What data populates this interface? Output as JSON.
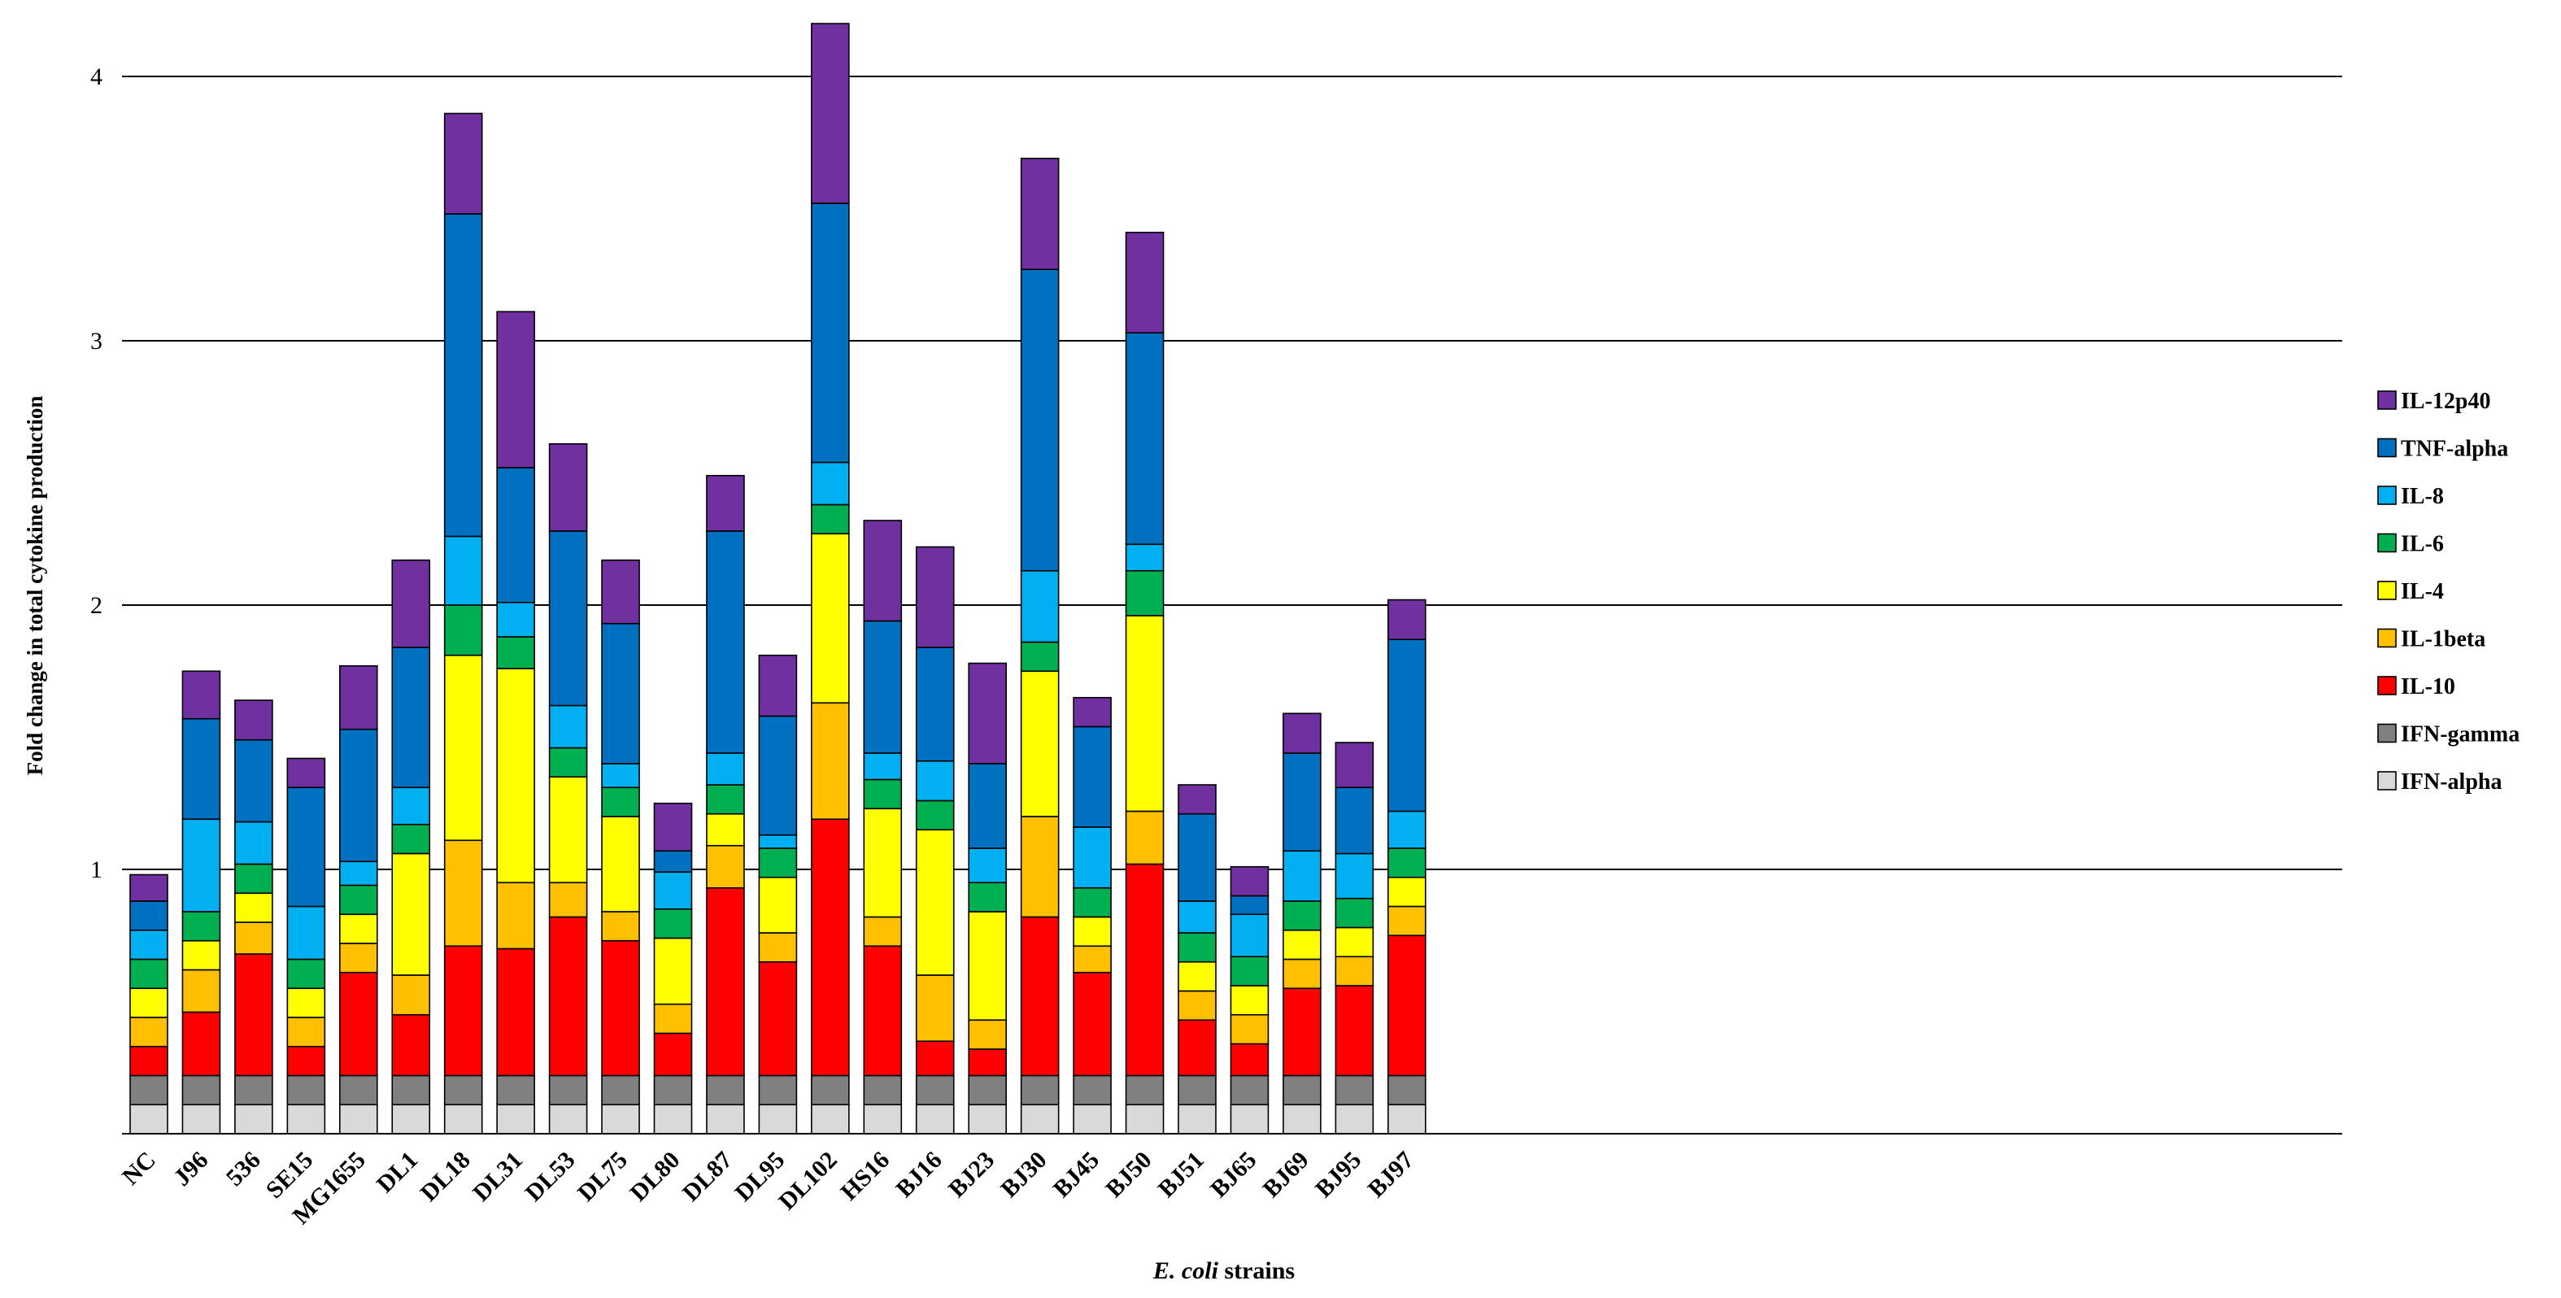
{
  "chart_data": {
    "type": "bar",
    "stacked": true,
    "title": "",
    "xlabel_italic": "E. coli",
    "xlabel_rest": " strains",
    "ylabel": "Fold change in total cytokine production",
    "ylim": [
      0,
      4.2
    ],
    "yticks": [
      "1",
      "2",
      "3",
      "4"
    ],
    "ytick_values": [
      1,
      2,
      3,
      4
    ],
    "grid": true,
    "legend_position": "right",
    "categories": [
      "NC",
      "J96",
      "536",
      "SE15",
      "MG1655",
      "DL1",
      "DL18",
      "DL31",
      "DL53",
      "DL75",
      "DL80",
      "DL87",
      "DL95",
      "DL102",
      "HS16",
      "BJ16",
      "BJ23",
      "BJ30",
      "BJ45",
      "BJ50",
      "BJ51",
      "BJ65",
      "BJ69",
      "BJ95",
      "BJ97"
    ],
    "series": [
      {
        "name": "IFN-alpha",
        "color": "#d9d9d9",
        "values": [
          0.11,
          0.11,
          0.11,
          0.11,
          0.11,
          0.11,
          0.11,
          0.11,
          0.11,
          0.11,
          0.11,
          0.11,
          0.11,
          0.11,
          0.11,
          0.11,
          0.11,
          0.11,
          0.11,
          0.11,
          0.11,
          0.11,
          0.11,
          0.11,
          0.11
        ]
      },
      {
        "name": "IFN-gamma",
        "color": "#808080",
        "values": [
          0.11,
          0.11,
          0.11,
          0.11,
          0.11,
          0.11,
          0.11,
          0.11,
          0.11,
          0.11,
          0.11,
          0.11,
          0.11,
          0.11,
          0.11,
          0.11,
          0.11,
          0.11,
          0.11,
          0.11,
          0.11,
          0.11,
          0.11,
          0.11,
          0.11
        ]
      },
      {
        "name": "IL-10",
        "color": "#ff0000",
        "values": [
          0.11,
          0.24,
          0.46,
          0.11,
          0.39,
          0.23,
          0.49,
          0.48,
          0.6,
          0.51,
          0.16,
          0.71,
          0.43,
          0.97,
          0.49,
          0.13,
          0.1,
          0.6,
          0.39,
          0.8,
          0.21,
          0.12,
          0.33,
          0.34,
          0.53
        ]
      },
      {
        "name": "IL-1beta",
        "color": "#ffc000",
        "values": [
          0.11,
          0.16,
          0.12,
          0.11,
          0.11,
          0.15,
          0.4,
          0.25,
          0.13,
          0.11,
          0.11,
          0.16,
          0.11,
          0.44,
          0.11,
          0.25,
          0.11,
          0.38,
          0.1,
          0.2,
          0.11,
          0.11,
          0.11,
          0.11,
          0.11
        ]
      },
      {
        "name": "IL-4",
        "color": "#ffff00",
        "values": [
          0.11,
          0.11,
          0.11,
          0.11,
          0.11,
          0.46,
          0.7,
          0.81,
          0.4,
          0.36,
          0.25,
          0.12,
          0.21,
          0.64,
          0.41,
          0.55,
          0.41,
          0.55,
          0.11,
          0.74,
          0.11,
          0.11,
          0.11,
          0.11,
          0.11
        ]
      },
      {
        "name": "IL-6",
        "color": "#00b050",
        "values": [
          0.11,
          0.11,
          0.11,
          0.11,
          0.11,
          0.11,
          0.19,
          0.12,
          0.11,
          0.11,
          0.11,
          0.11,
          0.11,
          0.11,
          0.11,
          0.11,
          0.11,
          0.11,
          0.11,
          0.17,
          0.11,
          0.11,
          0.11,
          0.11,
          0.11
        ]
      },
      {
        "name": "IL-8",
        "color": "#00b0f0",
        "values": [
          0.11,
          0.35,
          0.16,
          0.2,
          0.09,
          0.14,
          0.26,
          0.13,
          0.16,
          0.09,
          0.14,
          0.12,
          0.05,
          0.16,
          0.1,
          0.15,
          0.13,
          0.27,
          0.23,
          0.1,
          0.12,
          0.16,
          0.19,
          0.17,
          0.14
        ]
      },
      {
        "name": "TNF-alpha",
        "color": "#0070c0",
        "values": [
          0.11,
          0.38,
          0.31,
          0.45,
          0.5,
          0.53,
          1.22,
          0.51,
          0.66,
          0.53,
          0.08,
          0.84,
          0.45,
          0.98,
          0.5,
          0.43,
          0.32,
          1.14,
          0.38,
          0.8,
          0.33,
          0.07,
          0.37,
          0.25,
          0.65
        ]
      },
      {
        "name": "IL-12p40",
        "color": "#7030a0",
        "values": [
          0.1,
          0.18,
          0.15,
          0.11,
          0.24,
          0.33,
          0.38,
          0.59,
          0.33,
          0.24,
          0.18,
          0.21,
          0.23,
          0.68,
          0.38,
          0.38,
          0.38,
          0.42,
          0.11,
          0.38,
          0.11,
          0.11,
          0.15,
          0.17,
          0.15
        ]
      }
    ]
  }
}
